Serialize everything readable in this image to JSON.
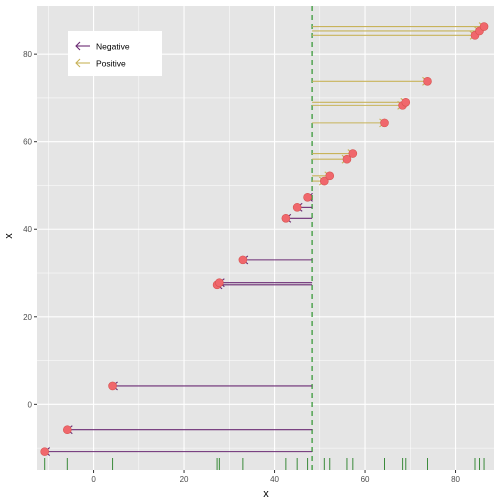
{
  "chart_data": {
    "type": "scatter",
    "xlabel": "x",
    "ylabel": "x",
    "xlim": [
      -12.5,
      88.5
    ],
    "ylim": [
      -15,
      91
    ],
    "x_ticks": [
      0,
      20,
      40,
      60,
      80
    ],
    "y_ticks": [
      0,
      20,
      40,
      60,
      80
    ],
    "grid": true,
    "reference_line": {
      "x": 48.3,
      "style": "dashed",
      "color": "#3a9a3a"
    },
    "legend": {
      "placement": "top-left",
      "entries": [
        {
          "label": "Negative",
          "color": "#6b2b73"
        },
        {
          "label": "Positive",
          "color": "#c8b35a"
        }
      ]
    },
    "colors": {
      "panel": "#e5e5e5",
      "grid": "#ffffff",
      "point_fill": "#f0676c",
      "point_stroke": "#d6534f",
      "rug": "#3a8a3a"
    },
    "points": [
      {
        "x": -10.8,
        "y": -10.8,
        "direction": "Negative"
      },
      {
        "x": -5.8,
        "y": -5.8,
        "direction": "Negative"
      },
      {
        "x": 4.2,
        "y": 4.2,
        "direction": "Negative"
      },
      {
        "x": 27.3,
        "y": 27.3,
        "direction": "Negative"
      },
      {
        "x": 27.8,
        "y": 27.8,
        "direction": "Negative"
      },
      {
        "x": 33.0,
        "y": 33.0,
        "direction": "Negative"
      },
      {
        "x": 42.5,
        "y": 42.5,
        "direction": "Negative"
      },
      {
        "x": 45.0,
        "y": 45.0,
        "direction": "Negative"
      },
      {
        "x": 47.3,
        "y": 47.3,
        "direction": "Negative"
      },
      {
        "x": 51.0,
        "y": 51.0,
        "direction": "Positive"
      },
      {
        "x": 52.2,
        "y": 52.2,
        "direction": "Positive"
      },
      {
        "x": 56.0,
        "y": 56.0,
        "direction": "Positive"
      },
      {
        "x": 57.3,
        "y": 57.3,
        "direction": "Positive"
      },
      {
        "x": 64.3,
        "y": 64.3,
        "direction": "Positive"
      },
      {
        "x": 68.3,
        "y": 68.3,
        "direction": "Positive"
      },
      {
        "x": 69.0,
        "y": 69.0,
        "direction": "Positive"
      },
      {
        "x": 73.8,
        "y": 73.8,
        "direction": "Positive"
      },
      {
        "x": 84.3,
        "y": 84.3,
        "direction": "Positive"
      },
      {
        "x": 85.3,
        "y": 85.3,
        "direction": "Positive"
      },
      {
        "x": 86.3,
        "y": 86.3,
        "direction": "Positive"
      }
    ]
  }
}
